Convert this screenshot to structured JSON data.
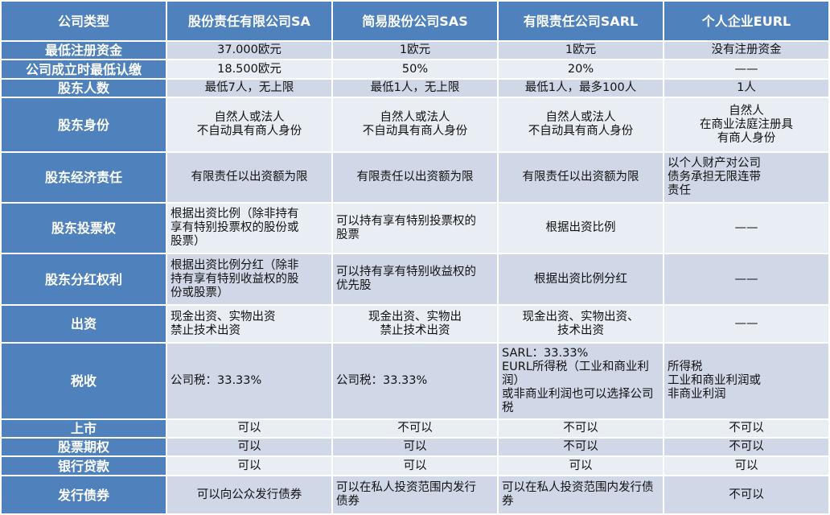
{
  "header": [
    "公司类型",
    "股份责任有限公司SA",
    "简易股份公司SAS",
    "有限责任公司SARL",
    "个人企业EURL"
  ],
  "rows": [
    {
      "label": "最低注册资金",
      "cells": [
        "37.000欧元",
        "1欧元",
        "1欧元",
        "没有注册资金"
      ]
    },
    {
      "label": "公司成立时最低认缴",
      "cells": [
        "18.500欧元",
        "50%",
        "20%",
        "——"
      ]
    },
    {
      "label": "股东人数",
      "cells": [
        "最低7人，无上限",
        "最低1人，无上限",
        "最低1人，最多100人",
        "1人"
      ]
    },
    {
      "label": "股东身份",
      "cells": [
        "自然人或法人\n不自动具有商人身份",
        "自然人或法人\n不自动具有商人身份",
        "自然人或法人\n不自动具有商人身份",
        "自然人\n在商业法庭注册具\n有商人身份"
      ]
    },
    {
      "label": "股东经济责任",
      "cells": [
        "有限责任以出资额为限",
        "有限责任以出资额为限",
        "有限责任以出资额为限",
        "以个人财产对公司\n债务承担无限连带\n责任"
      ]
    },
    {
      "label": "股东投票权",
      "cells": [
        "根据出资比例（除非持有\n享有特别投票权的股份或\n股票）",
        "可以持有享有特别投票权的\n股票",
        "根据出资比例",
        "——"
      ]
    },
    {
      "label": "股东分红权利",
      "cells": [
        "根据出资比例分红（除非\n持有享有特别收益权的股\n份或股票）",
        "可以持有享有特别收益权的\n优先股",
        "根据出资比例分红",
        "——"
      ]
    },
    {
      "label": "出资",
      "cells": [
        "现金出资、实物出资\n禁止技术出资",
        "现金出资、实物出\n禁止技术出资",
        "现金出资、实物出资、\n技术出资",
        "——"
      ]
    },
    {
      "label": "税收",
      "cells": [
        "公司税：33.33%",
        "公司税：33.33%",
        "SARL：33.33%\nEURL所得税（工业和商业利润）\n或非商业利润也可以选择公司\n税",
        "所得税\n工业和商业利润或\n非商业利润"
      ]
    },
    {
      "label": "上市",
      "cells": [
        "可以",
        "不可以",
        "不可以",
        "不可以"
      ]
    },
    {
      "label": "股票期权",
      "cells": [
        "可以",
        "可以",
        "不可以",
        "不可以"
      ]
    },
    {
      "label": "银行贷款",
      "cells": [
        "可以",
        "可以",
        "可以",
        "可以"
      ]
    },
    {
      "label": "发行债券",
      "cells": [
        "可以向公众发行债券",
        "可以在私人投资范围内发行\n债券",
        "可以在私人投资范围内发行债\n券",
        "不可以"
      ]
    }
  ]
}
